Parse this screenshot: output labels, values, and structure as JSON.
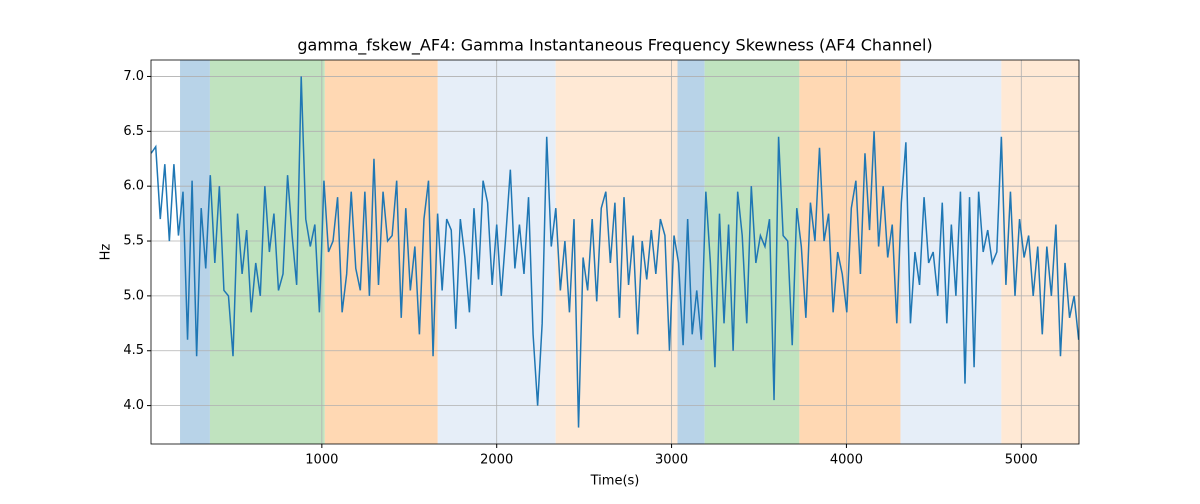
{
  "chart_data": {
    "type": "line",
    "title": "gamma_fskew_AF4: Gamma Instantaneous Frequency Skewness (AF4 Channel)",
    "xlabel": "Time(s)",
    "ylabel": "Hz",
    "xlim": [
      23,
      5330
    ],
    "ylim": [
      3.65,
      7.15
    ],
    "xticks": [
      1000,
      2000,
      3000,
      4000,
      5000
    ],
    "yticks": [
      {
        "value": 4.0,
        "label": "4.0"
      },
      {
        "value": 4.5,
        "label": "4.5"
      },
      {
        "value": 5.0,
        "label": "5.0"
      },
      {
        "value": 5.5,
        "label": "5.5"
      },
      {
        "value": 6.0,
        "label": "6.0"
      },
      {
        "value": 6.5,
        "label": "6.5"
      },
      {
        "value": 7.0,
        "label": "7.0"
      }
    ],
    "grid": true,
    "spans": [
      {
        "start": 189,
        "end": 360,
        "color": "#b8d3e8"
      },
      {
        "start": 360,
        "end": 1017,
        "color": "#c0e3bf"
      },
      {
        "start": 1017,
        "end": 1663,
        "color": "#ffd8b3"
      },
      {
        "start": 1663,
        "end": 2337,
        "color": "#e6eef8"
      },
      {
        "start": 2337,
        "end": 3034,
        "color": "#ffe9d5"
      },
      {
        "start": 3034,
        "end": 3189,
        "color": "#b8d3e8"
      },
      {
        "start": 3189,
        "end": 3731,
        "color": "#c0e3bf"
      },
      {
        "start": 3731,
        "end": 4309,
        "color": "#ffd8b3"
      },
      {
        "start": 4309,
        "end": 4886,
        "color": "#e6eef8"
      },
      {
        "start": 4886,
        "end": 5330,
        "color": "#ffe9d5"
      }
    ],
    "x": [
      24,
      50,
      76,
      102,
      128,
      154,
      180,
      206,
      232,
      258,
      284,
      310,
      336,
      362,
      388,
      414,
      440,
      466,
      492,
      518,
      544,
      570,
      596,
      622,
      648,
      674,
      700,
      726,
      752,
      778,
      804,
      830,
      856,
      882,
      908,
      934,
      960,
      986,
      1012,
      1038,
      1064,
      1090,
      1116,
      1142,
      1168,
      1194,
      1220,
      1246,
      1272,
      1298,
      1324,
      1350,
      1376,
      1402,
      1428,
      1454,
      1480,
      1506,
      1532,
      1558,
      1584,
      1610,
      1636,
      1662,
      1688,
      1714,
      1740,
      1766,
      1792,
      1818,
      1844,
      1870,
      1896,
      1922,
      1948,
      1974,
      2000,
      2026,
      2052,
      2078,
      2104,
      2130,
      2156,
      2182,
      2208,
      2234,
      2260,
      2286,
      2312,
      2338,
      2364,
      2390,
      2416,
      2442,
      2468,
      2494,
      2520,
      2546,
      2572,
      2598,
      2624,
      2650,
      2676,
      2702,
      2728,
      2754,
      2780,
      2806,
      2832,
      2858,
      2884,
      2910,
      2936,
      2962,
      2988,
      3014,
      3040,
      3066,
      3092,
      3118,
      3144,
      3170,
      3196,
      3222,
      3248,
      3274,
      3300,
      3326,
      3352,
      3378,
      3404,
      3430,
      3456,
      3482,
      3508,
      3534,
      3560,
      3586,
      3612,
      3638,
      3664,
      3690,
      3716,
      3742,
      3768,
      3794,
      3820,
      3846,
      3872,
      3898,
      3924,
      3950,
      3976,
      4002,
      4028,
      4054,
      4080,
      4106,
      4132,
      4158,
      4184,
      4210,
      4236,
      4262,
      4288,
      4314,
      4340,
      4366,
      4392,
      4418,
      4444,
      4470,
      4496,
      4522,
      4548,
      4574,
      4600,
      4626,
      4652,
      4678,
      4704,
      4730,
      4756,
      4782,
      4808,
      4834,
      4860,
      4886,
      4912,
      4938,
      4964,
      4990,
      5016,
      5042,
      5068,
      5094,
      5120,
      5146,
      5172,
      5198,
      5224,
      5250,
      5276,
      5302,
      5328
    ],
    "series": [
      {
        "color": "#1f77b4",
        "values": [
          6.3,
          6.36,
          5.7,
          6.2,
          5.5,
          6.2,
          5.55,
          5.95,
          4.6,
          6.05,
          4.45,
          5.8,
          5.25,
          6.1,
          5.3,
          6.0,
          5.05,
          5.0,
          4.45,
          5.75,
          5.2,
          5.6,
          4.85,
          5.3,
          5.0,
          6.0,
          5.4,
          5.75,
          5.05,
          5.2,
          6.1,
          5.55,
          5.1,
          7.0,
          5.7,
          5.45,
          5.65,
          4.85,
          6.05,
          5.4,
          5.5,
          5.9,
          4.85,
          5.2,
          5.95,
          5.25,
          5.05,
          5.95,
          5.0,
          6.25,
          5.1,
          5.95,
          5.5,
          5.55,
          6.05,
          4.8,
          5.8,
          5.05,
          5.45,
          4.65,
          5.7,
          6.05,
          4.45,
          5.75,
          5.05,
          5.7,
          5.6,
          4.7,
          5.7,
          5.35,
          4.85,
          5.8,
          5.15,
          6.05,
          5.85,
          5.1,
          5.65,
          5.0,
          5.55,
          6.15,
          5.25,
          5.65,
          5.2,
          5.9,
          4.65,
          4.0,
          4.75,
          6.45,
          5.45,
          5.8,
          5.05,
          5.5,
          4.85,
          5.7,
          3.8,
          5.35,
          5.05,
          5.7,
          4.95,
          5.8,
          5.95,
          5.3,
          5.85,
          4.8,
          5.9,
          5.1,
          5.55,
          4.65,
          5.5,
          5.15,
          5.6,
          5.2,
          5.7,
          5.55,
          4.5,
          5.55,
          5.3,
          4.55,
          5.7,
          4.65,
          5.05,
          4.6,
          5.95,
          5.3,
          4.35,
          5.75,
          4.75,
          5.65,
          4.5,
          5.95,
          5.55,
          4.75,
          6.0,
          5.3,
          5.55,
          5.45,
          5.7,
          4.05,
          6.45,
          5.55,
          5.5,
          4.55,
          5.8,
          5.45,
          4.8,
          5.85,
          5.5,
          6.35,
          5.5,
          5.75,
          4.85,
          5.4,
          5.2,
          4.85,
          5.8,
          6.05,
          5.2,
          6.3,
          5.6,
          6.5,
          5.45,
          6.0,
          5.35,
          5.65,
          4.75,
          5.85,
          6.4,
          4.75,
          5.4,
          5.1,
          5.9,
          5.3,
          5.4,
          5.0,
          5.85,
          4.75,
          5.65,
          5.0,
          5.95,
          4.2,
          5.9,
          4.35,
          5.95,
          5.4,
          5.6,
          5.3,
          5.4,
          6.45,
          5.1,
          5.95,
          5.0,
          5.7,
          5.35,
          5.55,
          5.0,
          5.45,
          4.65,
          5.45,
          5.0,
          5.65,
          4.45,
          5.3,
          4.8,
          5.0,
          4.6
        ]
      }
    ]
  }
}
